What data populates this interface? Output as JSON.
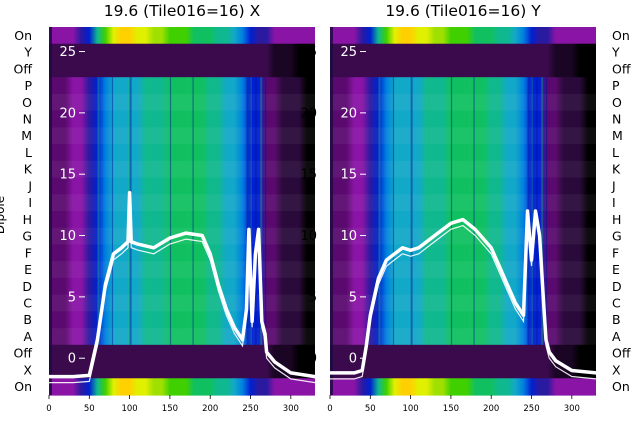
{
  "chart_data": {
    "type": "heatmap",
    "ylabel": "Dipole",
    "row_labels_top_to_bottom": [
      "On",
      "Y",
      "Off",
      "P",
      "O",
      "N",
      "M",
      "L",
      "K",
      "J",
      "I",
      "H",
      "G",
      "F",
      "E",
      "D",
      "C",
      "B",
      "A",
      "Off",
      "X",
      "On"
    ],
    "xlim": [
      0,
      330
    ],
    "x_ticks": [
      0,
      50,
      100,
      150,
      200,
      250,
      300
    ],
    "overlay_ylim": [
      -3,
      27
    ],
    "overlay_y_ticks": [
      0,
      5,
      10,
      15,
      20,
      25
    ],
    "colormap": [
      "#000000",
      "#2a0a3a",
      "#5a0a6e",
      "#8a14a6",
      "#2a1aa0",
      "#0020d0",
      "#0080e0",
      "#12a8c8",
      "#10b890",
      "#10c060",
      "#40d000",
      "#a0e000",
      "#e0f000",
      "#ffd000",
      "#ff9000",
      "#ff3000"
    ],
    "panels": [
      {
        "title": "19.6 (Tile016=16) X",
        "overlay_line": {
          "x": [
            0,
            15,
            30,
            50,
            60,
            70,
            80,
            90,
            98,
            100,
            102,
            110,
            130,
            150,
            170,
            190,
            200,
            210,
            220,
            230,
            240,
            245,
            248,
            252,
            256,
            260,
            264,
            268,
            270,
            280,
            300,
            330
          ],
          "y": [
            -1.5,
            -1.5,
            -1.5,
            -1.4,
            1.5,
            6,
            8.5,
            9,
            9.5,
            13.5,
            9.5,
            9.3,
            9.0,
            9.8,
            10.2,
            10.0,
            8.5,
            6.0,
            4.0,
            2.5,
            1.5,
            4.0,
            10.5,
            3.0,
            8.5,
            10.5,
            3.0,
            2.0,
            0.5,
            -0.3,
            -1.2,
            -1.5
          ]
        }
      },
      {
        "title": "19.6 (Tile016=16) Y",
        "overlay_line": {
          "x": [
            0,
            15,
            30,
            40,
            45,
            50,
            60,
            70,
            80,
            90,
            100,
            110,
            130,
            150,
            165,
            180,
            200,
            210,
            220,
            230,
            240,
            245,
            250,
            255,
            260,
            265,
            268,
            272,
            280,
            300,
            330
          ],
          "y": [
            -1.2,
            -1.2,
            -1.2,
            -1.0,
            1.0,
            3.5,
            6.5,
            8.0,
            8.5,
            9.0,
            8.8,
            9.0,
            10.0,
            11.0,
            11.3,
            10.5,
            9.0,
            7.5,
            6.0,
            4.5,
            3.5,
            12.0,
            8.0,
            12.0,
            10.0,
            4.5,
            1.5,
            0.5,
            -0.2,
            -1.0,
            -1.2
          ]
        }
      }
    ]
  }
}
